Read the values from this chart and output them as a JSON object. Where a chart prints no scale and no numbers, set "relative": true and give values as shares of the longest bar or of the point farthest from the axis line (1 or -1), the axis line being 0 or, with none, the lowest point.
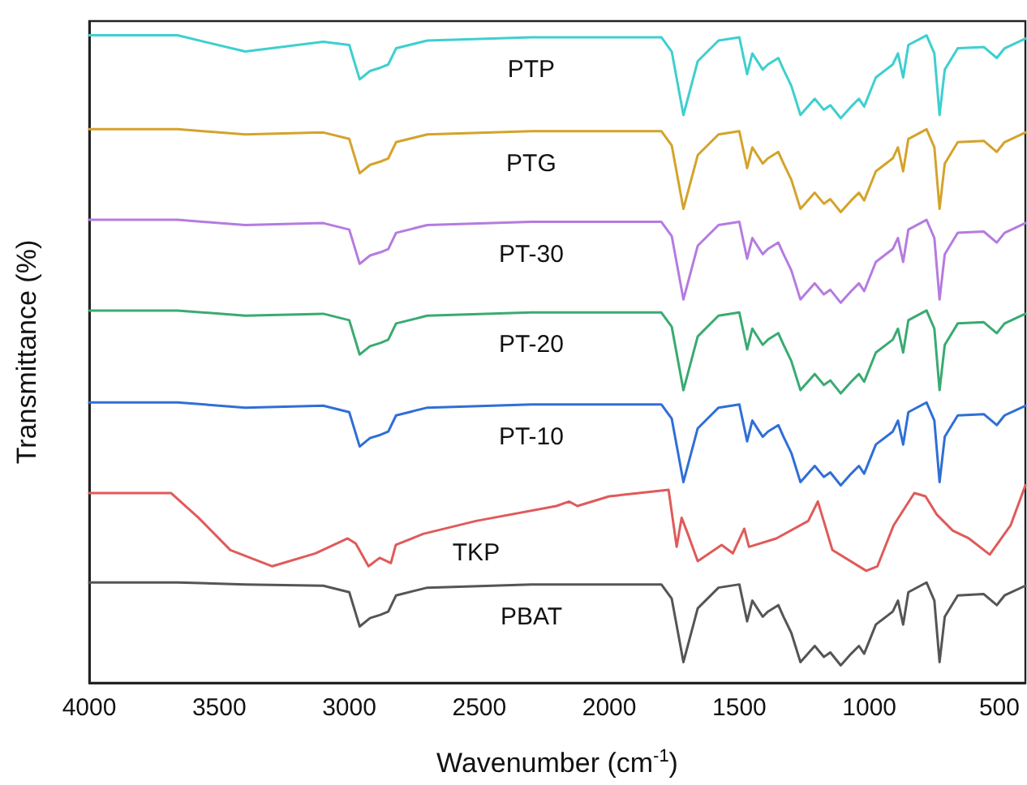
{
  "chart_data": {
    "type": "line",
    "xlabel": "Wavenumber (cm$^{-1}$)",
    "ylabel": "Transmittance (%)",
    "relative": true,
    "xlim": [
      4000,
      400
    ],
    "xticks": [
      4000,
      3500,
      3000,
      2500,
      2000,
      1500,
      1000,
      500
    ],
    "series": [
      {
        "name": "PTP",
        "color": "#3ecfd0",
        "x": [
          4000,
          3660,
          3400,
          3100,
          3000,
          2960,
          2920,
          2880,
          2850,
          2820,
          2700,
          2300,
          1800,
          1760,
          1715,
          1660,
          1580,
          1500,
          1470,
          1450,
          1410,
          1390,
          1350,
          1330,
          1300,
          1265,
          1210,
          1175,
          1150,
          1110,
          1070,
          1040,
          1020,
          975,
          910,
          890,
          870,
          850,
          780,
          750,
          730,
          710,
          660,
          560,
          510,
          480,
          400
        ],
        "values": [
          1,
          1,
          0.975,
          0.99,
          0.985,
          0.932,
          0.945,
          0.95,
          0.955,
          0.98,
          0.992,
          0.997,
          0.997,
          0.975,
          0.877,
          0.96,
          0.992,
          0.997,
          0.94,
          0.972,
          0.947,
          0.955,
          0.965,
          0.947,
          0.922,
          0.877,
          0.902,
          0.885,
          0.892,
          0.872,
          0.89,
          0.902,
          0.89,
          0.935,
          0.955,
          0.972,
          0.935,
          0.985,
          1,
          0.972,
          0.877,
          0.947,
          0.98,
          0.982,
          0.965,
          0.98,
          0.995
        ]
      },
      {
        "name": "PTG",
        "color": "#d4a32a",
        "x": [
          4000,
          3660,
          3400,
          3100,
          3000,
          2960,
          2920,
          2880,
          2850,
          2820,
          2700,
          2300,
          1800,
          1760,
          1715,
          1660,
          1580,
          1500,
          1470,
          1450,
          1410,
          1390,
          1350,
          1330,
          1300,
          1265,
          1210,
          1175,
          1150,
          1110,
          1070,
          1040,
          1020,
          975,
          910,
          890,
          870,
          850,
          780,
          750,
          730,
          710,
          660,
          560,
          510,
          480,
          400
        ],
        "values": [
          0.855,
          0.855,
          0.847,
          0.85,
          0.84,
          0.787,
          0.8,
          0.805,
          0.81,
          0.835,
          0.847,
          0.852,
          0.852,
          0.83,
          0.732,
          0.815,
          0.847,
          0.852,
          0.795,
          0.827,
          0.802,
          0.81,
          0.82,
          0.802,
          0.777,
          0.732,
          0.757,
          0.74,
          0.747,
          0.727,
          0.745,
          0.757,
          0.745,
          0.79,
          0.81,
          0.827,
          0.79,
          0.84,
          0.855,
          0.827,
          0.732,
          0.802,
          0.835,
          0.837,
          0.82,
          0.835,
          0.85
        ]
      },
      {
        "name": "PT-30",
        "color": "#b57be0",
        "x": [
          4000,
          3660,
          3400,
          3100,
          3000,
          2960,
          2920,
          2880,
          2850,
          2820,
          2700,
          2300,
          1800,
          1760,
          1715,
          1660,
          1580,
          1500,
          1470,
          1450,
          1410,
          1390,
          1350,
          1330,
          1300,
          1265,
          1210,
          1175,
          1150,
          1110,
          1070,
          1040,
          1020,
          975,
          910,
          890,
          870,
          850,
          780,
          750,
          730,
          710,
          660,
          560,
          510,
          480,
          400
        ],
        "values": [
          0.715,
          0.715,
          0.707,
          0.71,
          0.7,
          0.647,
          0.66,
          0.665,
          0.67,
          0.695,
          0.707,
          0.712,
          0.712,
          0.69,
          0.592,
          0.675,
          0.707,
          0.712,
          0.655,
          0.687,
          0.662,
          0.67,
          0.68,
          0.662,
          0.637,
          0.592,
          0.617,
          0.6,
          0.607,
          0.587,
          0.605,
          0.617,
          0.605,
          0.65,
          0.67,
          0.687,
          0.65,
          0.7,
          0.715,
          0.687,
          0.592,
          0.662,
          0.695,
          0.697,
          0.68,
          0.695,
          0.71
        ]
      },
      {
        "name": "PT-20",
        "color": "#3aaa72",
        "x": [
          4000,
          3660,
          3400,
          3100,
          3000,
          2960,
          2920,
          2880,
          2850,
          2820,
          2700,
          2300,
          1800,
          1760,
          1715,
          1660,
          1580,
          1500,
          1470,
          1450,
          1410,
          1390,
          1350,
          1330,
          1300,
          1265,
          1210,
          1175,
          1150,
          1110,
          1070,
          1040,
          1020,
          975,
          910,
          890,
          870,
          850,
          780,
          750,
          730,
          710,
          660,
          560,
          510,
          480,
          400
        ],
        "values": [
          0.575,
          0.575,
          0.567,
          0.57,
          0.56,
          0.507,
          0.52,
          0.525,
          0.53,
          0.555,
          0.567,
          0.572,
          0.572,
          0.55,
          0.452,
          0.535,
          0.567,
          0.572,
          0.515,
          0.547,
          0.522,
          0.53,
          0.54,
          0.522,
          0.497,
          0.452,
          0.477,
          0.46,
          0.467,
          0.447,
          0.465,
          0.477,
          0.465,
          0.51,
          0.53,
          0.547,
          0.51,
          0.56,
          0.575,
          0.547,
          0.452,
          0.522,
          0.555,
          0.557,
          0.54,
          0.555,
          0.57
        ]
      },
      {
        "name": "PT-10",
        "color": "#2f6fd6",
        "x": [
          4000,
          3660,
          3400,
          3100,
          3000,
          2960,
          2920,
          2880,
          2850,
          2820,
          2700,
          2300,
          1800,
          1760,
          1715,
          1660,
          1580,
          1500,
          1470,
          1450,
          1410,
          1390,
          1350,
          1330,
          1300,
          1265,
          1210,
          1175,
          1150,
          1110,
          1070,
          1040,
          1020,
          975,
          910,
          890,
          870,
          850,
          780,
          750,
          730,
          710,
          660,
          560,
          510,
          480,
          400
        ],
        "values": [
          0.433,
          0.433,
          0.425,
          0.428,
          0.418,
          0.365,
          0.378,
          0.383,
          0.388,
          0.413,
          0.425,
          0.43,
          0.43,
          0.408,
          0.31,
          0.393,
          0.425,
          0.43,
          0.373,
          0.405,
          0.38,
          0.388,
          0.398,
          0.38,
          0.355,
          0.31,
          0.335,
          0.318,
          0.325,
          0.305,
          0.323,
          0.335,
          0.323,
          0.368,
          0.388,
          0.405,
          0.368,
          0.418,
          0.433,
          0.405,
          0.31,
          0.38,
          0.413,
          0.415,
          0.398,
          0.413,
          0.428
        ]
      },
      {
        "name": "TKP",
        "color": "#e05a5a",
        "x": [
          4000,
          3685,
          3580,
          3457,
          3296,
          3130,
          3006,
          2975,
          2926,
          2883,
          2840,
          2821,
          2716,
          2512,
          2204,
          2154,
          2123,
          2000,
          1772,
          1741,
          1722,
          1698,
          1660,
          1568,
          1525,
          1481,
          1463,
          1358,
          1235,
          1198,
          1142,
          1012,
          969,
          907,
          827,
          784,
          741,
          679,
          617,
          537,
          457,
          400
        ],
        "values": [
          0.293,
          0.293,
          0.255,
          0.205,
          0.18,
          0.2,
          0.223,
          0.215,
          0.18,
          0.193,
          0.185,
          0.213,
          0.23,
          0.25,
          0.273,
          0.28,
          0.273,
          0.288,
          0.298,
          0.21,
          0.255,
          0.23,
          0.188,
          0.213,
          0.2,
          0.238,
          0.21,
          0.223,
          0.25,
          0.28,
          0.205,
          0.173,
          0.18,
          0.243,
          0.293,
          0.288,
          0.26,
          0.235,
          0.223,
          0.198,
          0.243,
          0.305
        ]
      },
      {
        "name": "PBAT",
        "color": "#555555",
        "x": [
          4000,
          3660,
          3400,
          3100,
          3000,
          2960,
          2920,
          2880,
          2850,
          2820,
          2700,
          2300,
          1800,
          1760,
          1715,
          1660,
          1580,
          1500,
          1470,
          1450,
          1410,
          1390,
          1350,
          1330,
          1300,
          1265,
          1210,
          1175,
          1150,
          1110,
          1070,
          1040,
          1020,
          975,
          910,
          890,
          870,
          850,
          780,
          750,
          730,
          710,
          660,
          560,
          510,
          480,
          400
        ],
        "values": [
          0.155,
          0.155,
          0.152,
          0.15,
          0.14,
          0.087,
          0.1,
          0.105,
          0.11,
          0.135,
          0.147,
          0.152,
          0.152,
          0.13,
          0.032,
          0.115,
          0.147,
          0.152,
          0.095,
          0.127,
          0.102,
          0.11,
          0.12,
          0.102,
          0.077,
          0.032,
          0.057,
          0.04,
          0.047,
          0.027,
          0.045,
          0.057,
          0.045,
          0.09,
          0.11,
          0.127,
          0.09,
          0.14,
          0.155,
          0.127,
          0.032,
          0.102,
          0.135,
          0.137,
          0.12,
          0.135,
          0.15
        ]
      }
    ]
  }
}
